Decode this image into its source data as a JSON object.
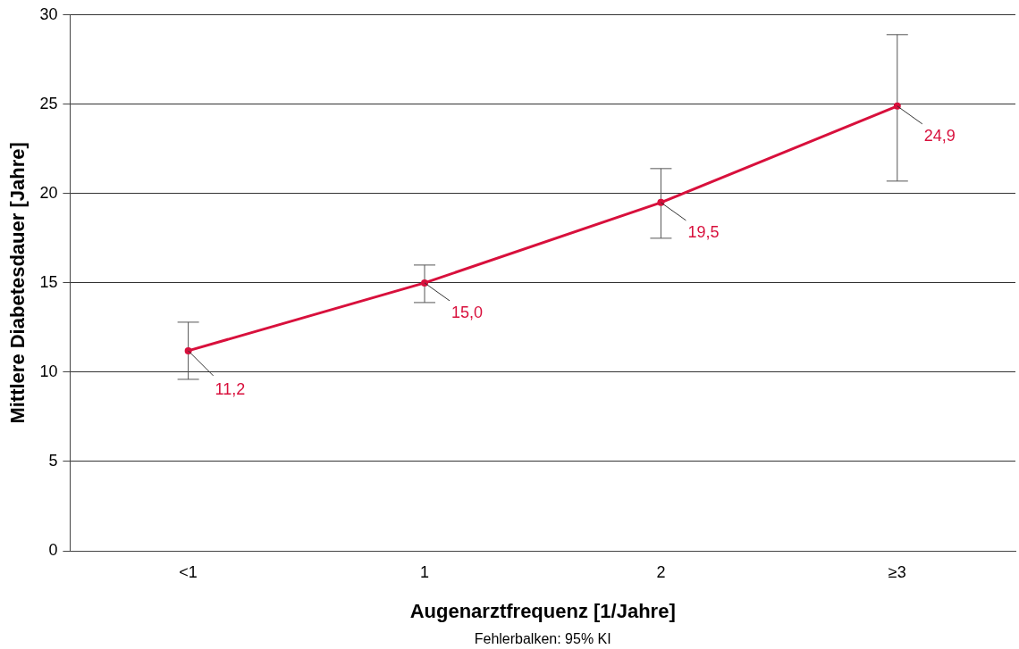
{
  "chart_data": {
    "type": "line",
    "xlabel": "Augenarztfrequenz [1/Jahre]",
    "ylabel": "Mittlere Diabetesdauer [Jahre]",
    "categories": [
      "<1",
      "1",
      "2",
      "≥3"
    ],
    "series": [
      {
        "color": "#d8103c",
        "values": [
          11.2,
          15.0,
          19.5,
          24.9
        ],
        "value_labels": [
          "11,2",
          "15,0",
          "19,5",
          "24,9"
        ],
        "errors": [
          [
            9.6,
            12.8
          ],
          [
            13.9,
            16.0
          ],
          [
            17.5,
            21.4
          ],
          [
            20.7,
            28.9
          ]
        ]
      }
    ],
    "ylim": [
      0,
      30
    ],
    "yticks": [
      0,
      5,
      10,
      15,
      20,
      25,
      30
    ],
    "grid": "y",
    "legend": false,
    "marker": "circle",
    "line_style": "solid",
    "annotations": [
      "Fehlerbalken: 95% KI"
    ]
  }
}
